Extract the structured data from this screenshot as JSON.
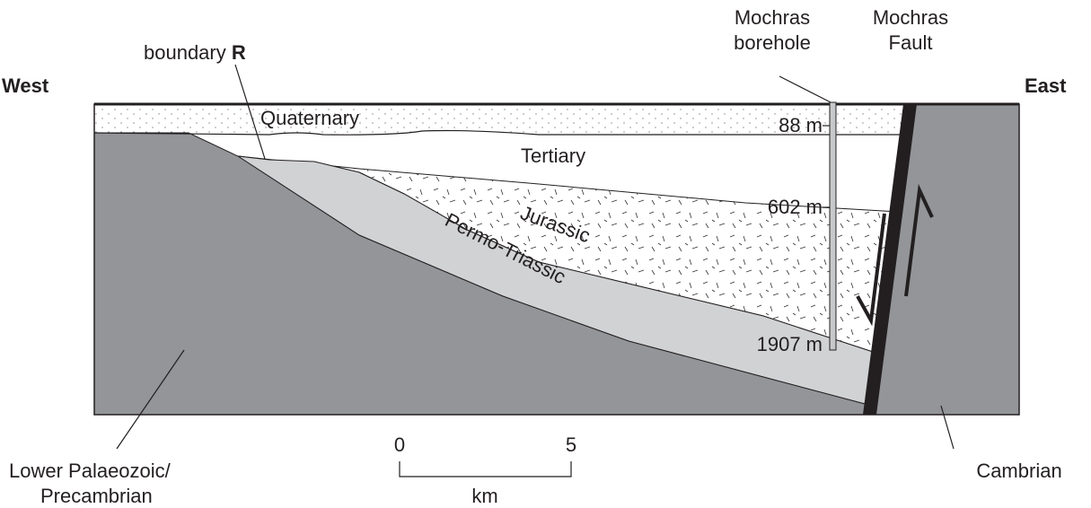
{
  "directions": {
    "west": "West",
    "east": "East"
  },
  "boundary": {
    "text": "boundary",
    "letter": "R"
  },
  "borehole": {
    "line1": "Mochras",
    "line2": "borehole"
  },
  "fault": {
    "line1": "Mochras",
    "line2": "Fault"
  },
  "layers": {
    "quaternary": "Quaternary",
    "tertiary": "Tertiary",
    "jurassic": "Jurassic",
    "permo_triassic": "Permo-Triassic",
    "cambrian": "Cambrian"
  },
  "basement": {
    "line1": "Lower Palaeozoic/",
    "line2": "Precambrian"
  },
  "depths": [
    "88 m",
    "602 m",
    "1907 m"
  ],
  "scale": {
    "start": "0",
    "end": "5",
    "unit": "km"
  }
}
